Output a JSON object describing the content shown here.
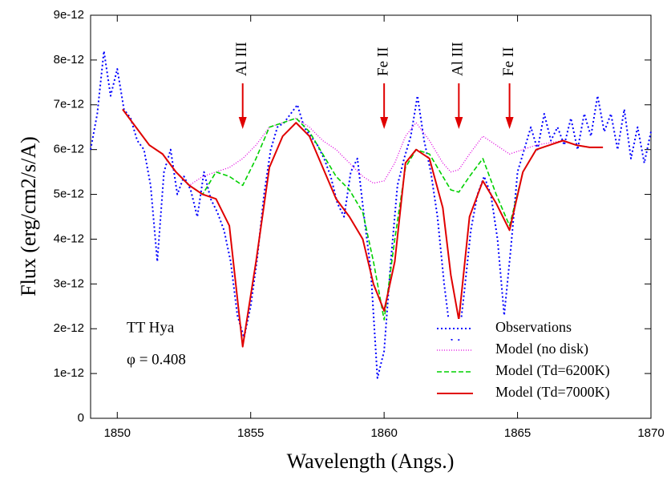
{
  "chart_data": {
    "type": "line",
    "xlabel": "Wavelength (Angs.)",
    "ylabel": "Flux (erg/cm2/s/A)",
    "xlim": [
      1849,
      1870
    ],
    "xticks": [
      1850,
      1855,
      1860,
      1865,
      1870
    ],
    "ylim": [
      0,
      9e-12
    ],
    "yticks": [
      0,
      1e-12,
      2e-12,
      3e-12,
      4e-12,
      5e-12,
      6e-12,
      7e-12,
      8e-12,
      9e-12
    ],
    "legend": "lower right",
    "annotations": [
      {
        "text": "Al III",
        "x": 1854.7,
        "color": "#e00000"
      },
      {
        "text": "Fe II",
        "x": 1860.0,
        "color": "#e00000"
      },
      {
        "text": "Al III",
        "x": 1862.8,
        "color": "#e00000"
      },
      {
        "text": "Fe II",
        "x": 1864.7,
        "color": "#e00000"
      }
    ],
    "notes": [
      "TT Hya",
      "φ = 0.408"
    ],
    "series": [
      {
        "name": "Observations",
        "color": "#0000ff",
        "style": "dotted",
        "x": [
          1849.0,
          1849.25,
          1849.5,
          1849.75,
          1850.0,
          1850.25,
          1850.5,
          1850.75,
          1851.0,
          1851.25,
          1851.5,
          1851.75,
          1852.0,
          1852.25,
          1852.5,
          1852.75,
          1853.0,
          1853.25,
          1853.5,
          1853.75,
          1854.0,
          1854.25,
          1854.5,
          1854.75,
          1855.0,
          1855.25,
          1855.5,
          1855.75,
          1856.0,
          1856.25,
          1856.5,
          1856.75,
          1857.0,
          1857.25,
          1857.5,
          1857.75,
          1858.0,
          1858.25,
          1858.5,
          1858.75,
          1859.0,
          1859.25,
          1859.5,
          1859.75,
          1860.0,
          1860.25,
          1860.5,
          1860.75,
          1861.0,
          1861.25,
          1861.5,
          1861.75,
          1862.0,
          1862.25,
          1862.5,
          1862.75,
          1863.0,
          1863.25,
          1863.5,
          1863.75,
          1864.0,
          1864.25,
          1864.5,
          1864.75,
          1865.0,
          1865.25,
          1865.5,
          1865.75,
          1866.0,
          1866.25,
          1866.5,
          1866.75,
          1867.0,
          1867.25,
          1867.5,
          1867.75,
          1868.0,
          1868.25,
          1868.5,
          1868.75,
          1869.0,
          1869.25,
          1869.5,
          1869.75,
          1870.0
        ],
        "values": [
          6e-12,
          6.8e-12,
          8.2e-12,
          7.2e-12,
          7.8e-12,
          6.9e-12,
          6.7e-12,
          6.2e-12,
          6e-12,
          5.2e-12,
          3.5e-12,
          5.5e-12,
          6e-12,
          5e-12,
          5.4e-12,
          5.1e-12,
          4.5e-12,
          5.5e-12,
          4.9e-12,
          4.6e-12,
          4.2e-12,
          3.5e-12,
          2.3e-12,
          1.8e-12,
          2.5e-12,
          3.6e-12,
          5e-12,
          6e-12,
          6.5e-12,
          6.6e-12,
          6.8e-12,
          7e-12,
          6.5e-12,
          6.3e-12,
          6.1e-12,
          5.8e-12,
          5.4e-12,
          4.8e-12,
          4.5e-12,
          5.5e-12,
          5.8e-12,
          4.5e-12,
          3.3e-12,
          9e-13,
          1.5e-12,
          3.5e-12,
          5.2e-12,
          5.8e-12,
          6.3e-12,
          7.2e-12,
          6.2e-12,
          5.5e-12,
          4.5e-12,
          3e-12,
          1.8e-12,
          1.5e-12,
          2.8e-12,
          4.2e-12,
          5e-12,
          5.4e-12,
          5e-12,
          4e-12,
          2.3e-12,
          3.8e-12,
          5.5e-12,
          6e-12,
          6.5e-12,
          6e-12,
          6.8e-12,
          6.2e-12,
          6.5e-12,
          6.1e-12,
          6.7e-12,
          6e-12,
          6.8e-12,
          6.3e-12,
          7.2e-12,
          6.4e-12,
          6.8e-12,
          6e-12,
          6.9e-12,
          5.8e-12,
          6.5e-12,
          5.7e-12,
          6.4e-12
        ]
      },
      {
        "name": "Model (no disk)",
        "color": "#e000e0",
        "style": "fine",
        "x": [
          1850.2,
          1850.7,
          1851.2,
          1851.7,
          1852.2,
          1852.7,
          1853.2,
          1853.7,
          1854.2,
          1854.7,
          1855.2,
          1855.7,
          1856.2,
          1856.7,
          1857.2,
          1857.7,
          1858.2,
          1858.7,
          1859.2,
          1859.6,
          1860.0,
          1860.4,
          1860.8,
          1861.2,
          1861.7,
          1862.2,
          1862.5,
          1862.8,
          1863.2,
          1863.7,
          1864.2,
          1864.7,
          1865.2,
          1865.7,
          1866.2,
          1866.7,
          1867.2,
          1867.7,
          1868.2
        ],
        "values": [
          6.9e-12,
          6.5e-12,
          6.1e-12,
          5.9e-12,
          5.5e-12,
          5.2e-12,
          5.4e-12,
          5.5e-12,
          5.6e-12,
          5.8e-12,
          6.1e-12,
          6.5e-12,
          6.6e-12,
          6.7e-12,
          6.5e-12,
          6.2e-12,
          6e-12,
          5.7e-12,
          5.4e-12,
          5.25e-12,
          5.3e-12,
          5.7e-12,
          6.3e-12,
          6.6e-12,
          6.2e-12,
          5.7e-12,
          5.5e-12,
          5.55e-12,
          5.9e-12,
          6.3e-12,
          6.1e-12,
          5.9e-12,
          6e-12,
          6.1e-12,
          6.15e-12,
          6.2e-12,
          6.1e-12,
          6.05e-12,
          6.05e-12
        ]
      },
      {
        "name": "Model (Td=6200K)",
        "color": "#00d000",
        "style": "dashed",
        "x": [
          1850.2,
          1850.7,
          1851.2,
          1851.7,
          1852.2,
          1852.7,
          1853.2,
          1853.7,
          1854.2,
          1854.7,
          1855.2,
          1855.7,
          1856.2,
          1856.7,
          1857.2,
          1857.7,
          1858.2,
          1858.7,
          1859.2,
          1859.6,
          1860.0,
          1860.4,
          1860.8,
          1861.2,
          1861.7,
          1862.2,
          1862.5,
          1862.8,
          1863.2,
          1863.7,
          1864.2,
          1864.7,
          1865.2,
          1865.7,
          1866.2,
          1866.7,
          1867.2,
          1867.7,
          1868.2
        ],
        "values": [
          6.9e-12,
          6.5e-12,
          6.1e-12,
          5.9e-12,
          5.5e-12,
          5.2e-12,
          5e-12,
          5.5e-12,
          5.4e-12,
          5.2e-12,
          5.8e-12,
          6.5e-12,
          6.6e-12,
          6.7e-12,
          6.4e-12,
          5.9e-12,
          5.4e-12,
          5.1e-12,
          4.6e-12,
          3.5e-12,
          2.2e-12,
          4e-12,
          5.6e-12,
          6e-12,
          5.9e-12,
          5.4e-12,
          5.1e-12,
          5.05e-12,
          5.4e-12,
          5.8e-12,
          5e-12,
          4.3e-12,
          5.5e-12,
          6e-12,
          6.1e-12,
          6.2e-12,
          6.1e-12,
          6.05e-12,
          6.05e-12
        ]
      },
      {
        "name": "Model (Td=7000K)",
        "color": "#e00000",
        "style": "solid",
        "x": [
          1850.2,
          1850.7,
          1851.2,
          1851.7,
          1852.2,
          1852.7,
          1853.2,
          1853.7,
          1854.2,
          1854.7,
          1855.2,
          1855.7,
          1856.2,
          1856.7,
          1857.2,
          1857.7,
          1858.2,
          1858.7,
          1859.2,
          1859.6,
          1860.0,
          1860.4,
          1860.8,
          1861.2,
          1861.7,
          1862.2,
          1862.5,
          1862.8,
          1863.2,
          1863.7,
          1864.2,
          1864.7,
          1865.2,
          1865.7,
          1866.2,
          1866.7,
          1867.2,
          1867.7,
          1868.2
        ],
        "values": [
          6.9e-12,
          6.5e-12,
          6.1e-12,
          5.9e-12,
          5.5e-12,
          5.2e-12,
          5e-12,
          4.9e-12,
          4.3e-12,
          1.6e-12,
          3.5e-12,
          5.6e-12,
          6.3e-12,
          6.6e-12,
          6.3e-12,
          5.6e-12,
          4.9e-12,
          4.5e-12,
          4e-12,
          3e-12,
          2.4e-12,
          3.5e-12,
          5.7e-12,
          6e-12,
          5.8e-12,
          4.7e-12,
          3.2e-12,
          2.2e-12,
          4.5e-12,
          5.3e-12,
          4.8e-12,
          4.2e-12,
          5.5e-12,
          6e-12,
          6.1e-12,
          6.2e-12,
          6.1e-12,
          6.05e-12,
          6.05e-12
        ]
      }
    ]
  }
}
